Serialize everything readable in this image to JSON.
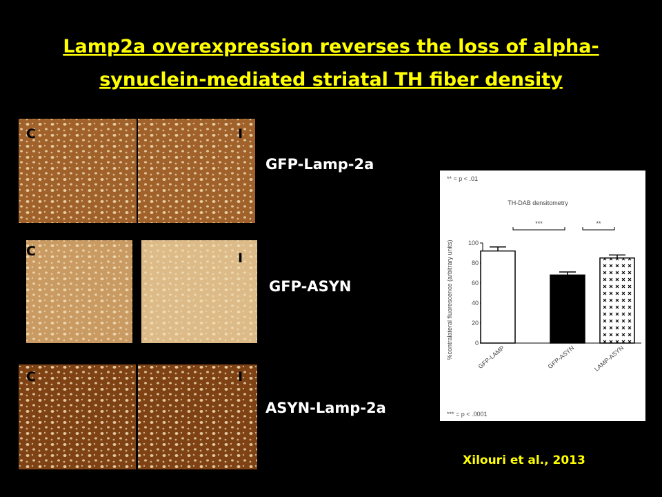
{
  "title": "Lamp2a overexpression reverses the loss of alpha-synuclein-mediated striatal TH fiber density",
  "panels": [
    {
      "left": "C",
      "right": "I",
      "label": "GFP-Lamp-2a"
    },
    {
      "left": "C",
      "right": "I",
      "label": "GFP-ASYN"
    },
    {
      "left": "C",
      "right": "I",
      "label": "ASYN-Lamp-2a"
    }
  ],
  "chart_data": {
    "type": "bar",
    "title": "TH-DAB densitometry",
    "y_label": "%contralateral fluorescence (arbitrary units)",
    "categories": [
      "GFP-LAMP",
      "GFP-ASYN",
      "LAMP-ASYN"
    ],
    "values": [
      92,
      68,
      85
    ],
    "errors": [
      4,
      3,
      3
    ],
    "colors": [
      "#ffffff",
      "#000000",
      "#ffffff"
    ],
    "hatch": [
      false,
      false,
      true
    ],
    "ylim": [
      0,
      100
    ],
    "yticks": [
      0,
      20,
      40,
      60,
      80,
      100
    ],
    "annotations": [
      "** = p < .01",
      "*** = p < .0001"
    ],
    "significance": [
      {
        "from": 0,
        "to": 1,
        "label": "***"
      },
      {
        "from": 1,
        "to": 2,
        "label": "**"
      }
    ]
  },
  "citation": "Xilouri et al., 2013"
}
